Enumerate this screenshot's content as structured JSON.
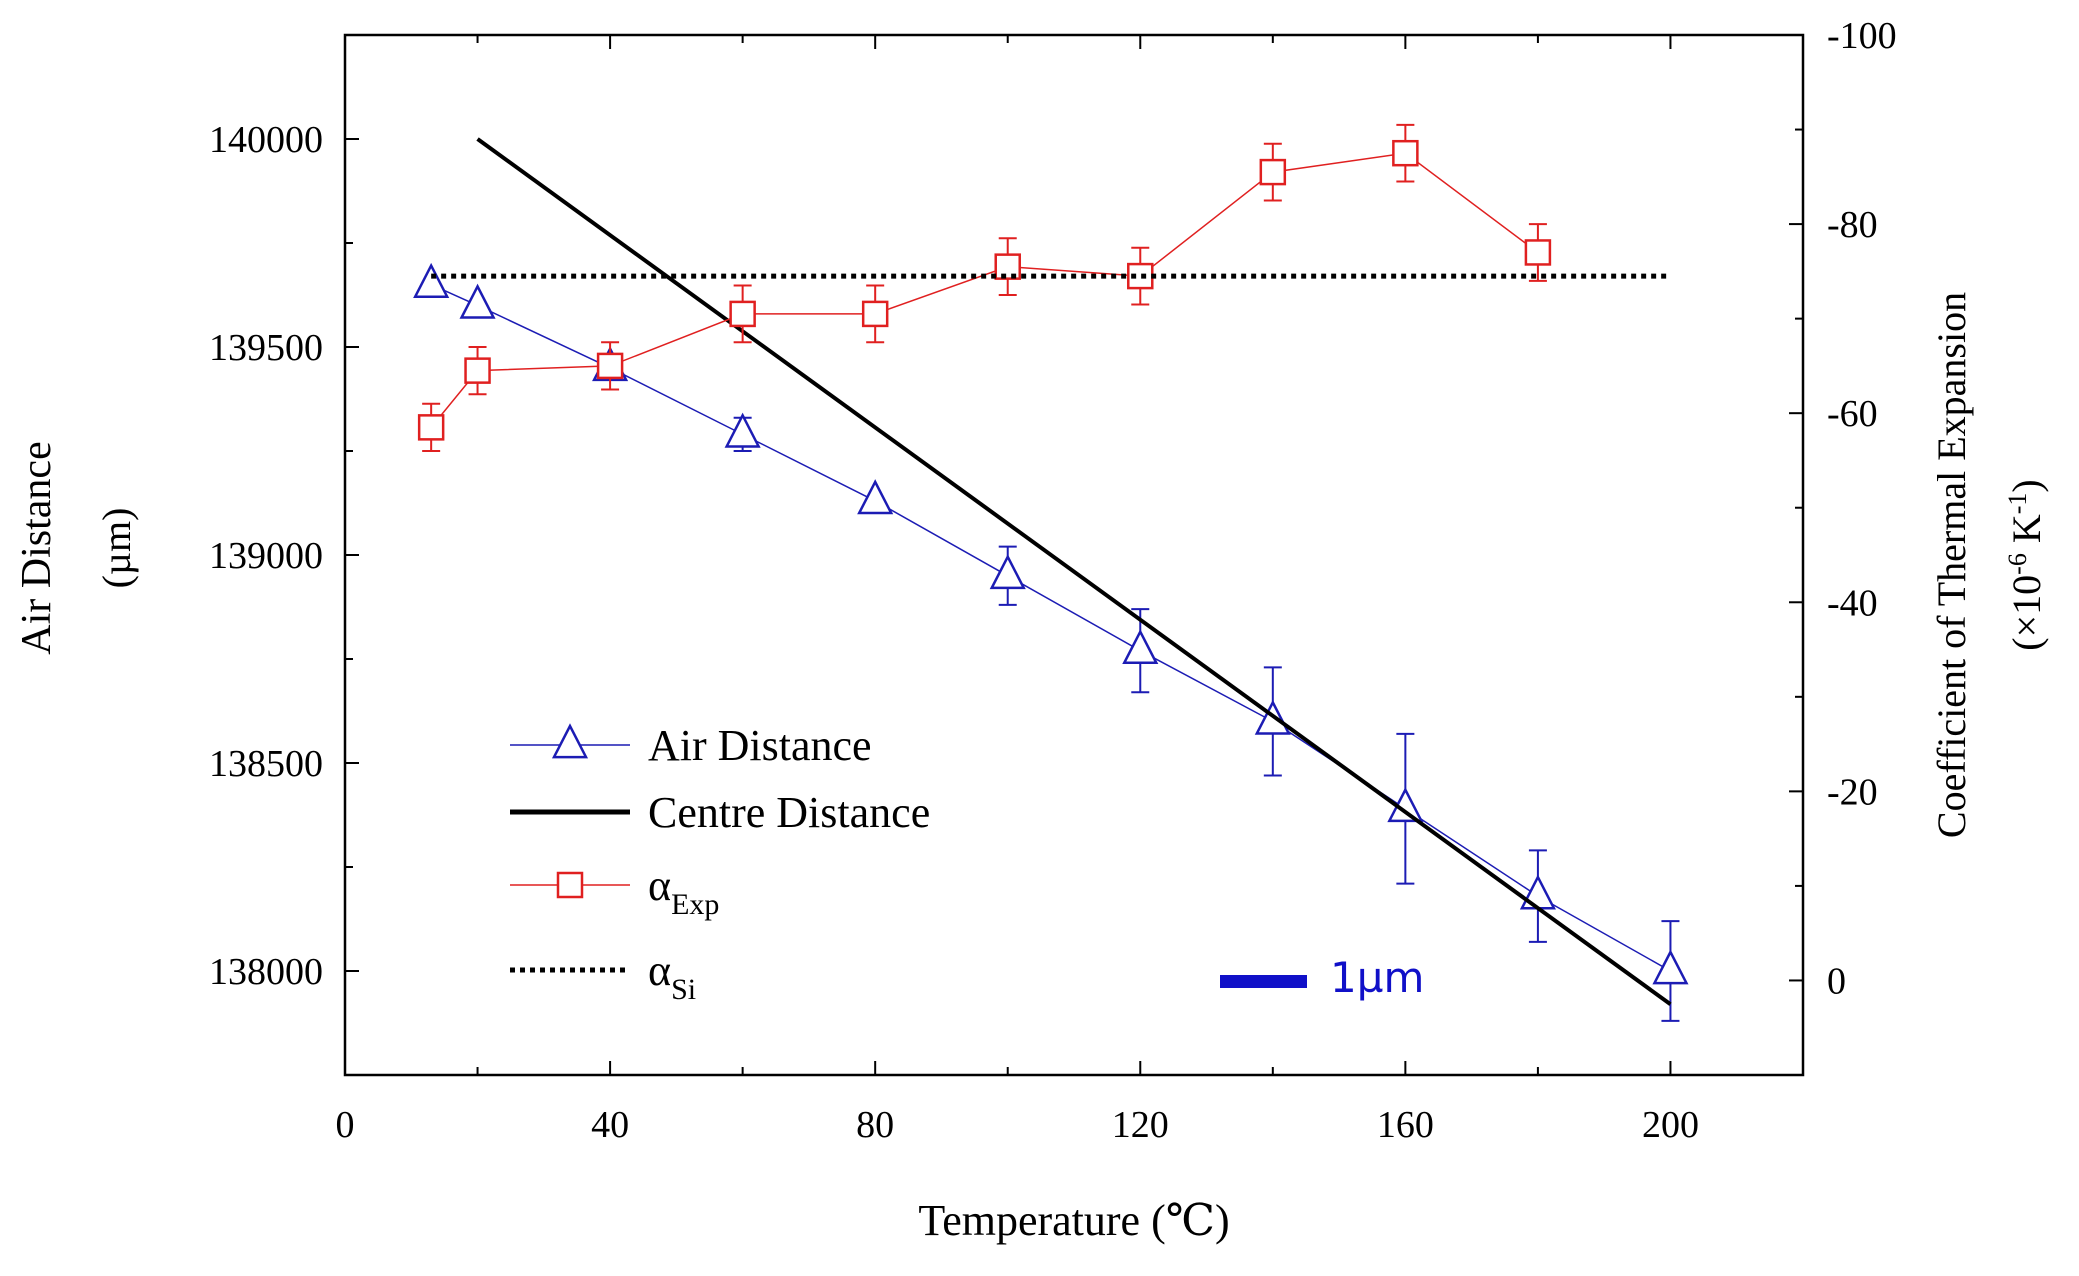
{
  "chart_data": {
    "type": "line",
    "title": "",
    "xlabel": "Temperature (℃)",
    "xlim": [
      0,
      220
    ],
    "xticks": [
      0,
      40,
      80,
      120,
      160,
      200
    ],
    "y_left": {
      "label_line1": "Air Distance",
      "label_line2": "(µm)",
      "lim": [
        137750,
        140250
      ],
      "ticks": [
        138000,
        138500,
        139000,
        139500,
        140000
      ]
    },
    "y_right": {
      "label_line1": "Coefficient of Thermal Expansion",
      "label_line2_prefix": "(×10",
      "label_line2_exp1": "-6",
      "label_line2_mid": " K",
      "label_line2_exp2": "-1",
      "label_line2_suffix": ")",
      "lim": [
        10,
        -100
      ],
      "inverted": true,
      "ticks": [
        0,
        -20,
        -40,
        -60,
        -80,
        -100
      ]
    },
    "series": [
      {
        "name": "Air Distance",
        "axis": "left",
        "color": "#1c1cb4",
        "marker": "triangle",
        "x": [
          13,
          20,
          40,
          60,
          80,
          100,
          120,
          140,
          160,
          180,
          200
        ],
        "y": [
          139650,
          139600,
          139450,
          139290,
          139130,
          138950,
          138770,
          138600,
          138390,
          138180,
          138000
        ],
        "err": [
          0,
          0,
          0,
          40,
          0,
          70,
          100,
          130,
          180,
          110,
          120
        ]
      },
      {
        "name": "Centre Distance",
        "axis": "left",
        "color": "#000000",
        "marker": "none",
        "x": [
          20,
          200
        ],
        "y": [
          140000,
          137920
        ]
      },
      {
        "name": "α",
        "sub": "Exp",
        "axis": "right",
        "color": "#e02020",
        "marker": "square",
        "x": [
          13,
          20,
          40,
          60,
          80,
          100,
          120,
          140,
          160,
          180
        ],
        "y": [
          -58.5,
          -64.5,
          -65.0,
          -70.5,
          -70.5,
          -75.5,
          -74.5,
          -85.5,
          -87.5,
          -77.0
        ],
        "err": [
          2.5,
          2.5,
          2.5,
          3.0,
          3.0,
          3.0,
          3.0,
          3.0,
          3.0,
          3.0
        ]
      },
      {
        "name": "α",
        "sub": "Si",
        "axis": "right",
        "color": "#000000",
        "marker": "none",
        "dashed": true,
        "x": [
          13,
          200
        ],
        "y": [
          -74.5,
          -74.5
        ]
      }
    ],
    "annotation": {
      "text": "1µm",
      "color": "#1010c8"
    }
  }
}
